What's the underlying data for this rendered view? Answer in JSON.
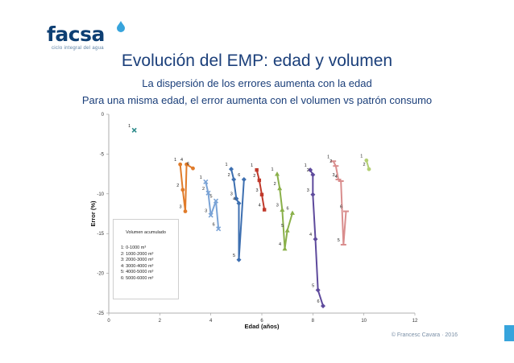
{
  "logo": {
    "text": "facsa",
    "tagline": "ciclo integral del agua",
    "accent": "#37a4dc"
  },
  "title": "Evolución del EMP: edad y volumen",
  "subtitle1": "La dispersión de los errores aumenta con la edad",
  "subtitle2": "Para una misma edad, el error aumenta con el volumen vs patrón consumo",
  "footer": "© Francesc Cavara · 2016",
  "legend": {
    "title": "Volumen acumulado",
    "items": [
      "1: 0-1000 m³",
      "2: 1000-2000 m³",
      "3: 2000-3000 m³",
      "4: 3000-4000 m³",
      "5: 4000-5000 m³",
      "6: 5000-6000 m³"
    ]
  },
  "chart_data": {
    "type": "line",
    "xlabel": "Edad (años)",
    "ylabel": "Error (%)",
    "xlim": [
      0,
      12
    ],
    "ylim": [
      -25,
      0
    ],
    "xticks": [
      0,
      2,
      4,
      6,
      8,
      10,
      12
    ],
    "yticks": [
      0,
      -5,
      -10,
      -15,
      -20,
      -25
    ],
    "grid": false,
    "legend_position": "left",
    "series": [
      {
        "color": "#2e8b8b",
        "marker": "x",
        "points": [
          {
            "x": 1.0,
            "y": -2.0,
            "label": "1"
          }
        ]
      },
      {
        "color": "#e07b2a",
        "marker": "circle",
        "points": [
          {
            "x": 2.8,
            "y": -6.3,
            "label": "1"
          },
          {
            "x": 2.9,
            "y": -9.5,
            "label": "2"
          },
          {
            "x": 3.0,
            "y": -12.2,
            "label": "3"
          },
          {
            "x": 3.05,
            "y": -6.3,
            "label": "4"
          },
          {
            "x": 3.3,
            "y": -6.8,
            "label": "6"
          }
        ]
      },
      {
        "color": "#7aa3d6",
        "marker": "x",
        "points": [
          {
            "x": 3.8,
            "y": -8.5,
            "label": "1"
          },
          {
            "x": 3.9,
            "y": -9.9,
            "label": "2"
          },
          {
            "x": 4.0,
            "y": -12.7,
            "label": "3"
          },
          {
            "x": 4.2,
            "y": -10.9,
            "label": "5"
          },
          {
            "x": 4.3,
            "y": -14.4,
            "label": "6"
          }
        ]
      },
      {
        "color": "#3d6fb0",
        "marker": "diamond",
        "points": [
          {
            "x": 4.8,
            "y": -6.9,
            "label": "1"
          },
          {
            "x": 4.9,
            "y": -8.2,
            "label": "2"
          },
          {
            "x": 5.0,
            "y": -10.6,
            "label": "3"
          },
          {
            "x": 5.1,
            "y": -11.2,
            "label": "4"
          },
          {
            "x": 5.1,
            "y": -18.3,
            "label": "5"
          },
          {
            "x": 5.3,
            "y": -8.2,
            "label": "6"
          }
        ]
      },
      {
        "color": "#c0392b",
        "marker": "square",
        "points": [
          {
            "x": 5.8,
            "y": -7.0,
            "label": "1"
          },
          {
            "x": 5.9,
            "y": -8.3,
            "label": "2"
          },
          {
            "x": 6.0,
            "y": -10.1,
            "label": "3"
          },
          {
            "x": 6.1,
            "y": -12.0,
            "label": "4"
          }
        ]
      },
      {
        "color": "#8ab04a",
        "marker": "triangle",
        "points": [
          {
            "x": 6.6,
            "y": -7.5,
            "label": "1"
          },
          {
            "x": 6.7,
            "y": -9.3,
            "label": "2"
          },
          {
            "x": 6.8,
            "y": -12.0,
            "label": "3"
          },
          {
            "x": 6.9,
            "y": -16.9,
            "label": "4"
          },
          {
            "x": 7.0,
            "y": -14.6,
            "label": "5"
          },
          {
            "x": 7.2,
            "y": -12.4,
            "label": "6"
          }
        ]
      },
      {
        "color": "#5e4a9c",
        "marker": "diamond",
        "points": [
          {
            "x": 7.9,
            "y": -7.0,
            "label": "1"
          },
          {
            "x": 8.0,
            "y": -7.6,
            "label": "2"
          },
          {
            "x": 8.0,
            "y": -10.1,
            "label": "3"
          },
          {
            "x": 8.1,
            "y": -15.7,
            "label": "4"
          },
          {
            "x": 8.2,
            "y": -22.1,
            "label": "5"
          },
          {
            "x": 8.4,
            "y": -24.1,
            "label": "6"
          }
        ]
      },
      {
        "color": "#d98d8d",
        "marker": "dash",
        "points": [
          {
            "x": 8.8,
            "y": -5.9,
            "label": "1"
          },
          {
            "x": 8.9,
            "y": -6.5,
            "label": "2"
          },
          {
            "x": 9.0,
            "y": -8.2,
            "label": "3"
          },
          {
            "x": 9.1,
            "y": -8.4,
            "label": "4"
          },
          {
            "x": 9.2,
            "y": -16.4,
            "label": "5"
          },
          {
            "x": 9.3,
            "y": -12.2,
            "label": "6"
          }
        ]
      },
      {
        "color": "#b3cf73",
        "marker": "circle",
        "points": [
          {
            "x": 10.1,
            "y": -5.8,
            "label": "1"
          },
          {
            "x": 10.2,
            "y": -6.9,
            "label": "2"
          }
        ]
      }
    ]
  }
}
